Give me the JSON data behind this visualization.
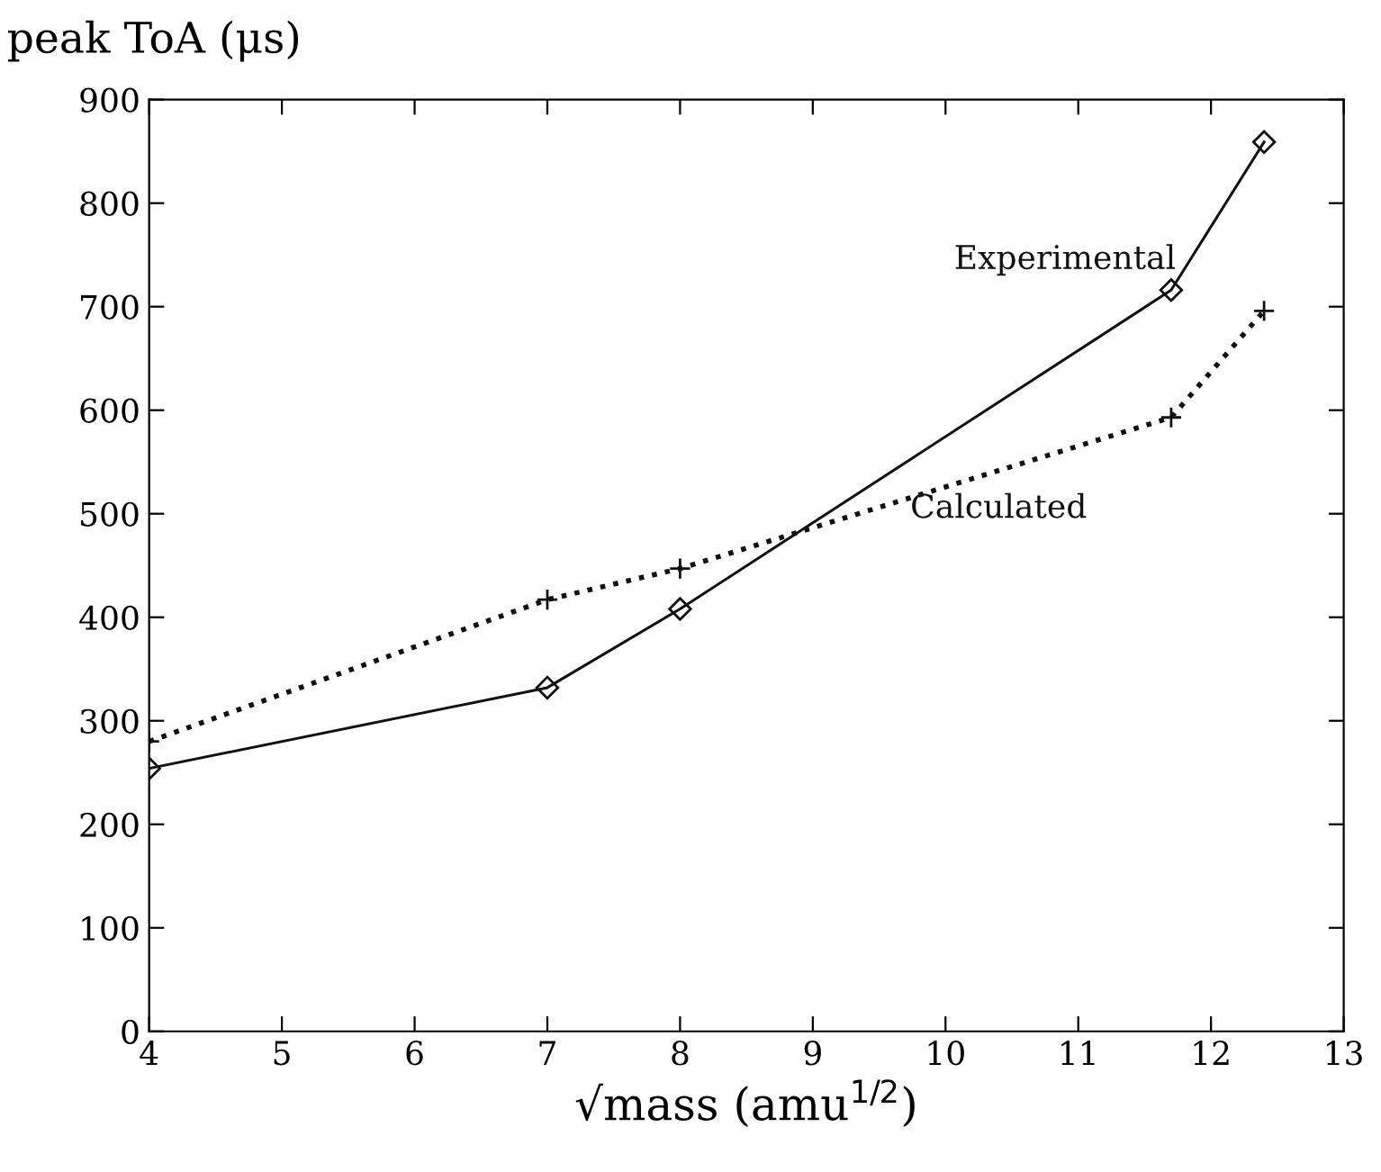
{
  "chart_data": {
    "type": "line",
    "ylabel": "peak ToA (μs)",
    "xlabel": "√mass (amu$^{1/2}$)",
    "xlim": [
      4,
      13
    ],
    "xticks": [
      4,
      5,
      6,
      7,
      8,
      9,
      10,
      11,
      12,
      13
    ],
    "ylim": [
      0,
      900
    ],
    "yticks": [
      0,
      100,
      200,
      300,
      400,
      500,
      600,
      700,
      800,
      900
    ],
    "grid": false,
    "legend": false,
    "series": [
      {
        "name": "Experimental",
        "color": "#111111",
        "line_style": "solid",
        "marker": "diamond",
        "x": [
          4,
          7,
          8,
          11.7,
          12.4
        ],
        "values": [
          254,
          332,
          408,
          716,
          859
        ]
      },
      {
        "name": "Calculated",
        "color": "#111111",
        "line_style": "dotted",
        "marker": "cross",
        "x": [
          4,
          7,
          8,
          11.7,
          12.4
        ],
        "values": [
          280,
          417,
          447,
          593,
          696
        ]
      }
    ]
  }
}
